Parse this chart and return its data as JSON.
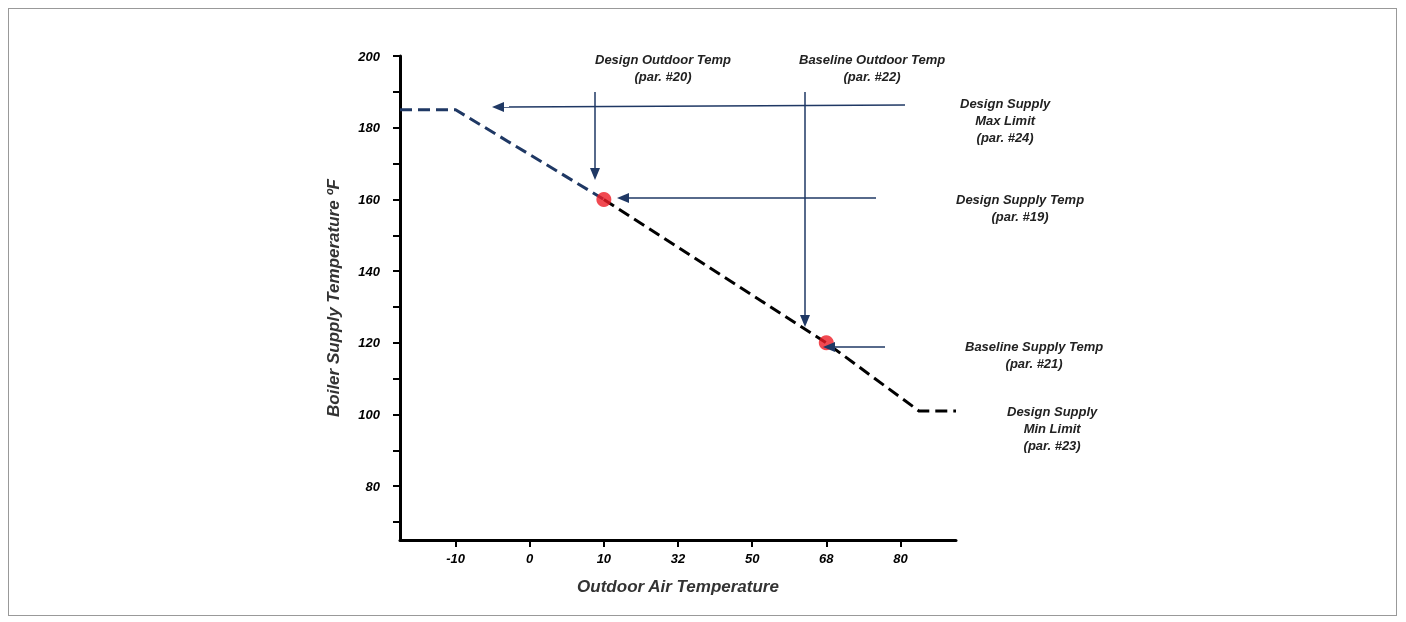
{
  "chart_data": {
    "type": "line",
    "xlabel": "Outdoor Air Temperature",
    "ylabel": "Boiler Supply Temperature ºF",
    "categories": [
      null,
      null,
      null,
      "-10",
      null,
      null,
      null,
      "0",
      null,
      null,
      null,
      "10",
      null,
      null,
      null,
      "32",
      null,
      null,
      null,
      "50",
      null,
      null,
      null,
      "68",
      null,
      null,
      null,
      "80",
      null,
      null,
      null
    ],
    "ylim": [
      65,
      200
    ],
    "yticks": [
      {
        "value": 70,
        "label": null
      },
      80,
      {
        "value": 90,
        "label": null
      },
      100,
      {
        "value": 110,
        "label": null
      },
      120,
      {
        "value": 130,
        "label": null
      },
      140,
      {
        "value": 150,
        "label": null
      },
      160,
      {
        "value": 170,
        "label": null
      },
      180,
      {
        "value": 190,
        "label": null
      },
      200
    ],
    "line_style": "dashed",
    "series": [
      {
        "color": "#1f3864",
        "marker": "none",
        "values": [
          185,
          null,
          null,
          185,
          null,
          null,
          null,
          null,
          null,
          null,
          null,
          160,
          null,
          null,
          null,
          null,
          null,
          null,
          null,
          null,
          null,
          null,
          null,
          null,
          null,
          null,
          null,
          null,
          null,
          null,
          null
        ]
      },
      {
        "color": "#000000",
        "marker": "none",
        "values": [
          null,
          null,
          null,
          null,
          null,
          null,
          null,
          null,
          null,
          null,
          null,
          160,
          null,
          null,
          null,
          null,
          null,
          null,
          null,
          null,
          null,
          null,
          null,
          120,
          null,
          null,
          null,
          null,
          101,
          null,
          101
        ]
      },
      {
        "type": "scatter",
        "color": "#ee1c25",
        "marker": "circle",
        "values": [
          null,
          null,
          null,
          null,
          null,
          null,
          null,
          null,
          null,
          null,
          null,
          160,
          null,
          null,
          null,
          null,
          null,
          null,
          null,
          null,
          null,
          null,
          null,
          120,
          null,
          null,
          null,
          null,
          null,
          null,
          null
        ]
      }
    ],
    "annotations": [
      "Design Outdoor Temp\n(par. #20)",
      "Baseline Outdoor Temp\n(par. #22)",
      "Design Supply\nMax Limit\n(par. #24)",
      "Design Supply Temp\n(par. #19)",
      "Baseline Supply Temp\n(par. #21)",
      "Design Supply\nMin Limit\n(par. #23)"
    ]
  }
}
